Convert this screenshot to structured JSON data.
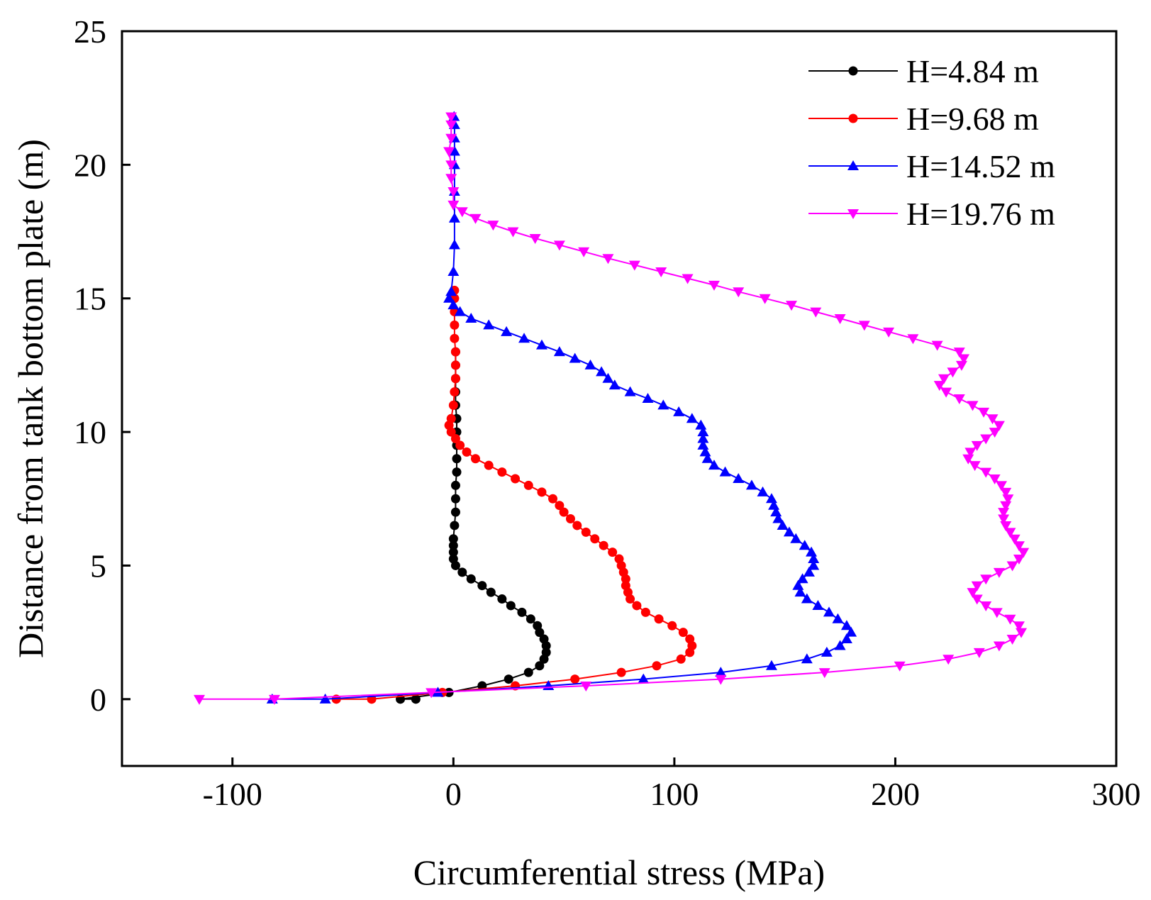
{
  "chart_data": {
    "type": "line",
    "title": "",
    "xlabel": "Circumferential stress (MPa)",
    "ylabel": "Distance from tank bottom plate (m)",
    "xlim": [
      -150,
      300
    ],
    "ylim": [
      -2.5,
      25
    ],
    "xticks": [
      -100,
      0,
      100,
      200,
      300
    ],
    "yticks": [
      0,
      5,
      10,
      15,
      20,
      25
    ],
    "xtick_labels": [
      "-100",
      "0",
      "100",
      "200",
      "300"
    ],
    "ytick_labels": [
      "0",
      "5",
      "10",
      "15",
      "20",
      "25"
    ],
    "grid": false,
    "legend_position": "top-right",
    "series": [
      {
        "name": "H=4.84 m",
        "color": "#000000",
        "marker": "circle",
        "points": [
          [
            -17,
            0
          ],
          [
            -24,
            0
          ],
          [
            -2,
            0.25
          ],
          [
            13,
            0.5
          ],
          [
            25,
            0.75
          ],
          [
            34,
            1.0
          ],
          [
            39,
            1.25
          ],
          [
            41,
            1.5
          ],
          [
            42,
            1.75
          ],
          [
            42,
            2.0
          ],
          [
            41,
            2.25
          ],
          [
            39,
            2.5
          ],
          [
            38,
            2.75
          ],
          [
            35,
            3.0
          ],
          [
            31,
            3.25
          ],
          [
            26,
            3.5
          ],
          [
            22,
            3.75
          ],
          [
            17,
            4.0
          ],
          [
            13,
            4.25
          ],
          [
            8,
            4.5
          ],
          [
            4,
            4.75
          ],
          [
            1,
            5.0
          ],
          [
            0,
            5.25
          ],
          [
            0,
            5.5
          ],
          [
            0,
            5.75
          ],
          [
            0,
            6.0
          ],
          [
            0.5,
            6.5
          ],
          [
            1,
            7.0
          ],
          [
            1,
            7.5
          ],
          [
            1,
            8.0
          ],
          [
            1.5,
            8.5
          ],
          [
            1.5,
            9.0
          ],
          [
            1.5,
            9.5
          ],
          [
            1.5,
            10.0
          ],
          [
            1.5,
            10.5
          ],
          [
            1,
            11.0
          ],
          [
            1,
            11.5
          ],
          [
            1,
            12.0
          ],
          [
            1,
            12.5
          ],
          [
            1,
            13.0
          ]
        ]
      },
      {
        "name": "H=9.68 m",
        "color": "#ff0000",
        "marker": "circle",
        "points": [
          [
            -53,
            0
          ],
          [
            -37,
            0
          ],
          [
            -5,
            0.25
          ],
          [
            28,
            0.5
          ],
          [
            55,
            0.75
          ],
          [
            76,
            1.0
          ],
          [
            92,
            1.25
          ],
          [
            103,
            1.5
          ],
          [
            107,
            1.75
          ],
          [
            108,
            2.0
          ],
          [
            107,
            2.25
          ],
          [
            104,
            2.5
          ],
          [
            99,
            2.75
          ],
          [
            93,
            3.0
          ],
          [
            87,
            3.25
          ],
          [
            83,
            3.5
          ],
          [
            80,
            3.75
          ],
          [
            79,
            4.0
          ],
          [
            78,
            4.25
          ],
          [
            78,
            4.5
          ],
          [
            77,
            4.75
          ],
          [
            76,
            5.0
          ],
          [
            75,
            5.25
          ],
          [
            72,
            5.5
          ],
          [
            68,
            5.75
          ],
          [
            64,
            6.0
          ],
          [
            60,
            6.25
          ],
          [
            56,
            6.5
          ],
          [
            53,
            6.75
          ],
          [
            50,
            7.0
          ],
          [
            48,
            7.25
          ],
          [
            45,
            7.5
          ],
          [
            40,
            7.75
          ],
          [
            34,
            8.0
          ],
          [
            28,
            8.25
          ],
          [
            22,
            8.5
          ],
          [
            16,
            8.75
          ],
          [
            10,
            9.0
          ],
          [
            6,
            9.25
          ],
          [
            3,
            9.5
          ],
          [
            1,
            9.75
          ],
          [
            -1,
            10.0
          ],
          [
            -2,
            10.25
          ],
          [
            -1,
            10.5
          ],
          [
            0,
            11.0
          ],
          [
            0.5,
            11.5
          ],
          [
            1,
            12.0
          ],
          [
            1,
            12.5
          ],
          [
            1,
            13.0
          ],
          [
            0.5,
            13.5
          ],
          [
            0.5,
            14.0
          ],
          [
            0.5,
            14.5
          ],
          [
            0.5,
            15.0
          ],
          [
            0.5,
            15.3
          ]
        ]
      },
      {
        "name": "H=14.52 m",
        "color": "#0000ff",
        "marker": "triangle-up",
        "points": [
          [
            -82,
            0
          ],
          [
            -58,
            0
          ],
          [
            -7,
            0.25
          ],
          [
            43,
            0.5
          ],
          [
            86,
            0.75
          ],
          [
            121,
            1.0
          ],
          [
            144,
            1.25
          ],
          [
            160,
            1.5
          ],
          [
            169,
            1.75
          ],
          [
            175,
            2.0
          ],
          [
            178,
            2.25
          ],
          [
            180,
            2.5
          ],
          [
            178,
            2.75
          ],
          [
            174,
            3.0
          ],
          [
            170,
            3.25
          ],
          [
            165,
            3.5
          ],
          [
            160,
            3.75
          ],
          [
            157,
            4.0
          ],
          [
            156,
            4.25
          ],
          [
            158,
            4.5
          ],
          [
            161,
            4.75
          ],
          [
            163,
            5.0
          ],
          [
            163,
            5.25
          ],
          [
            162,
            5.5
          ],
          [
            159,
            5.75
          ],
          [
            155,
            6.0
          ],
          [
            152,
            6.25
          ],
          [
            149,
            6.5
          ],
          [
            147,
            6.75
          ],
          [
            146,
            7.0
          ],
          [
            145,
            7.25
          ],
          [
            144,
            7.5
          ],
          [
            140,
            7.75
          ],
          [
            135,
            8.0
          ],
          [
            129,
            8.25
          ],
          [
            123,
            8.5
          ],
          [
            118,
            8.75
          ],
          [
            115,
            9.0
          ],
          [
            114,
            9.25
          ],
          [
            113,
            9.5
          ],
          [
            113,
            9.75
          ],
          [
            113,
            10.0
          ],
          [
            112,
            10.25
          ],
          [
            108,
            10.5
          ],
          [
            102,
            10.75
          ],
          [
            95,
            11.0
          ],
          [
            88,
            11.25
          ],
          [
            80,
            11.5
          ],
          [
            73,
            11.75
          ],
          [
            70,
            12.0
          ],
          [
            67,
            12.25
          ],
          [
            62,
            12.5
          ],
          [
            55,
            12.75
          ],
          [
            48,
            13.0
          ],
          [
            40,
            13.25
          ],
          [
            32,
            13.5
          ],
          [
            24,
            13.75
          ],
          [
            16,
            14.0
          ],
          [
            8,
            14.25
          ],
          [
            3,
            14.5
          ],
          [
            0,
            14.75
          ],
          [
            -2,
            15.0
          ],
          [
            -1,
            15.25
          ],
          [
            0,
            16.0
          ],
          [
            0.5,
            17.0
          ],
          [
            0.5,
            18.0
          ],
          [
            0.5,
            19.0
          ],
          [
            0.5,
            20.0
          ],
          [
            0.5,
            20.5
          ],
          [
            0.5,
            21.0
          ],
          [
            0.5,
            21.5
          ],
          [
            0.3,
            21.8
          ]
        ]
      },
      {
        "name": "H=19.76 m",
        "color": "#ff00ff",
        "marker": "triangle-down",
        "points": [
          [
            -115,
            0
          ],
          [
            -81,
            0
          ],
          [
            -10,
            0.25
          ],
          [
            60,
            0.5
          ],
          [
            121,
            0.75
          ],
          [
            168,
            1.0
          ],
          [
            202,
            1.25
          ],
          [
            224,
            1.5
          ],
          [
            238,
            1.75
          ],
          [
            247,
            2.0
          ],
          [
            253,
            2.25
          ],
          [
            257,
            2.5
          ],
          [
            256,
            2.75
          ],
          [
            252,
            3.0
          ],
          [
            246,
            3.25
          ],
          [
            241,
            3.5
          ],
          [
            237,
            3.75
          ],
          [
            235,
            4.0
          ],
          [
            237,
            4.25
          ],
          [
            241,
            4.5
          ],
          [
            247,
            4.75
          ],
          [
            253,
            5.0
          ],
          [
            256,
            5.25
          ],
          [
            258,
            5.5
          ],
          [
            256,
            5.75
          ],
          [
            254,
            6.0
          ],
          [
            252,
            6.25
          ],
          [
            250,
            6.5
          ],
          [
            249,
            6.75
          ],
          [
            249,
            7.0
          ],
          [
            250,
            7.25
          ],
          [
            251,
            7.5
          ],
          [
            250,
            7.75
          ],
          [
            248,
            8.0
          ],
          [
            245,
            8.25
          ],
          [
            241,
            8.5
          ],
          [
            236,
            8.75
          ],
          [
            233,
            9.0
          ],
          [
            234,
            9.25
          ],
          [
            237,
            9.5
          ],
          [
            241,
            9.75
          ],
          [
            245,
            10.0
          ],
          [
            247,
            10.25
          ],
          [
            244,
            10.5
          ],
          [
            240,
            10.75
          ],
          [
            235,
            11.0
          ],
          [
            229,
            11.25
          ],
          [
            223,
            11.5
          ],
          [
            220,
            11.75
          ],
          [
            222,
            12.0
          ],
          [
            226,
            12.25
          ],
          [
            230,
            12.5
          ],
          [
            231,
            12.75
          ],
          [
            229,
            13.0
          ],
          [
            219,
            13.25
          ],
          [
            208,
            13.5
          ],
          [
            197,
            13.75
          ],
          [
            186,
            14.0
          ],
          [
            175,
            14.25
          ],
          [
            164,
            14.5
          ],
          [
            153,
            14.75
          ],
          [
            141,
            15.0
          ],
          [
            129,
            15.25
          ],
          [
            118,
            15.5
          ],
          [
            106,
            15.75
          ],
          [
            94,
            16.0
          ],
          [
            82,
            16.25
          ],
          [
            70,
            16.5
          ],
          [
            59,
            16.75
          ],
          [
            48,
            17.0
          ],
          [
            37,
            17.25
          ],
          [
            27,
            17.5
          ],
          [
            18,
            17.75
          ],
          [
            10,
            18.0
          ],
          [
            4,
            18.25
          ],
          [
            0,
            18.5
          ],
          [
            0,
            19.0
          ],
          [
            -1,
            19.5
          ],
          [
            -1,
            20.0
          ],
          [
            -2,
            20.5
          ],
          [
            -1,
            21.0
          ],
          [
            -1,
            21.5
          ],
          [
            -1,
            21.8
          ]
        ]
      }
    ]
  }
}
